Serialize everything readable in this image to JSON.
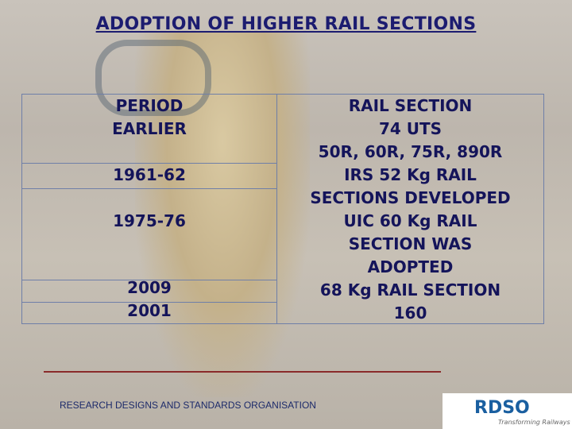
{
  "header": {
    "title": "ADOPTION OF HIGHER RAIL SECTIONS"
  },
  "table": {
    "period": [
      "PERIOD",
      "EARLIER",
      "1961-62",
      "1975-76",
      "2009",
      "2001"
    ],
    "rail_section": [
      "RAIL SECTION",
      "74 UTS",
      "50R, 60R, 75R, 890R",
      "IRS 52 Kg RAIL",
      "SECTIONS DEVELOPED",
      "UIC 60 Kg RAIL",
      "SECTION WAS",
      "ADOPTED",
      "68 Kg RAIL SECTION",
      "160"
    ]
  },
  "footer": {
    "organisation": "RESEARCH DESIGNS AND STANDARDS ORGANISATION",
    "logo": "RDSO",
    "tagline": "Transforming Railways"
  }
}
